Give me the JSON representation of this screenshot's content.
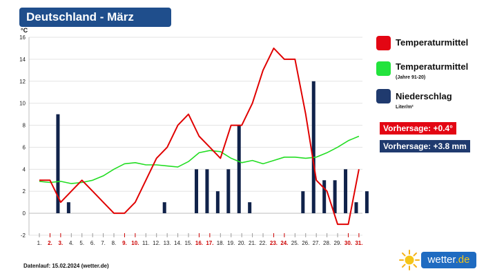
{
  "title": "Deutschland - März",
  "chart_data": {
    "type": "bar+line",
    "ylabel": "°C",
    "ylim": [
      -2,
      16
    ],
    "yticks": [
      -2,
      0,
      2,
      4,
      6,
      8,
      10,
      12,
      14,
      16
    ],
    "categories": [
      "1.",
      "2.",
      "3.",
      "4.",
      "5.",
      "6.",
      "7.",
      "8.",
      "9.",
      "10.",
      "11.",
      "12.",
      "13.",
      "14.",
      "15.",
      "16.",
      "17.",
      "18.",
      "19.",
      "20.",
      "21.",
      "22.",
      "23.",
      "24.",
      "25.",
      "26.",
      "27.",
      "28.",
      "29.",
      "30.",
      "31."
    ],
    "red_days": [
      2,
      3,
      9,
      10,
      16,
      17,
      23,
      24,
      30,
      31
    ],
    "series": [
      {
        "name": "Temperaturmittel",
        "type": "line",
        "color": "#e00000",
        "values": [
          3,
          3,
          1,
          2,
          3,
          2,
          1,
          0,
          0,
          1,
          3,
          5,
          6,
          8,
          9,
          7,
          6,
          5,
          8,
          8,
          10,
          13,
          15,
          14,
          14,
          9,
          3,
          2,
          -1,
          -1,
          4
        ]
      },
      {
        "name": "Temperaturmittel (Jahre 91-20)",
        "type": "line",
        "color": "#22dd22",
        "values": [
          2.9,
          2.8,
          2.9,
          2.7,
          2.8,
          3.0,
          3.4,
          4.0,
          4.5,
          4.6,
          4.4,
          4.4,
          4.3,
          4.2,
          4.7,
          5.5,
          5.7,
          5.6,
          5.0,
          4.6,
          4.8,
          4.5,
          4.8,
          5.1,
          5.1,
          5.0,
          5.1,
          5.5,
          6.0,
          6.6,
          7.0
        ]
      },
      {
        "name": "Niederschlag",
        "type": "bar",
        "unit": "Liter/m²",
        "color": "#10224a",
        "values": [
          0,
          9,
          1,
          0,
          0,
          0,
          0,
          0,
          0,
          0,
          0,
          1,
          0,
          0,
          4,
          4,
          2,
          4,
          8,
          1,
          0,
          0,
          0,
          0,
          2,
          12,
          3,
          3,
          4,
          1,
          2
        ]
      }
    ]
  },
  "legend": {
    "temp": {
      "label": "Temperaturmittel",
      "color": "#e30613"
    },
    "normal": {
      "label": "Temperaturmittel",
      "sub": "(Jahre 91-20)",
      "color": "#22e33c"
    },
    "rain": {
      "label": "Niederschlag",
      "sub": "Liter/m²",
      "color": "#1f3a6e"
    }
  },
  "forecast": {
    "temp": {
      "text": "Vorhersage: +0.4°",
      "color": "#e30613"
    },
    "rain": {
      "text": "Vorhersage: +3.8 mm",
      "color": "#1f3a6e"
    }
  },
  "footer": "Datenlauf: 15.02.2024 (wetter.de)",
  "logo": {
    "name": "wetter",
    "tld": ".de"
  }
}
